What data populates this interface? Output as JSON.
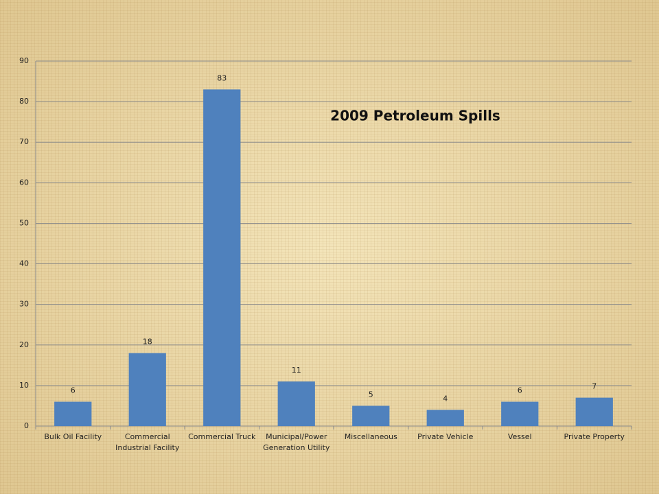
{
  "chart_data": {
    "type": "bar",
    "title": "2009 Petroleum Spills",
    "categories": [
      "Bulk Oil Facility",
      "Commercial Industrial Facility",
      "Commercial Truck",
      "Municipal/Power Generation Utility",
      "Miscellaneous",
      "Private Vehicle",
      "Vessel",
      "Private Property"
    ],
    "values": [
      6,
      18,
      83,
      11,
      5,
      4,
      6,
      7
    ],
    "color": "#4f81bd",
    "ylim": [
      0,
      90
    ],
    "yticks": [
      0,
      10,
      20,
      30,
      40,
      50,
      60,
      70,
      80,
      90
    ],
    "grid": true
  }
}
